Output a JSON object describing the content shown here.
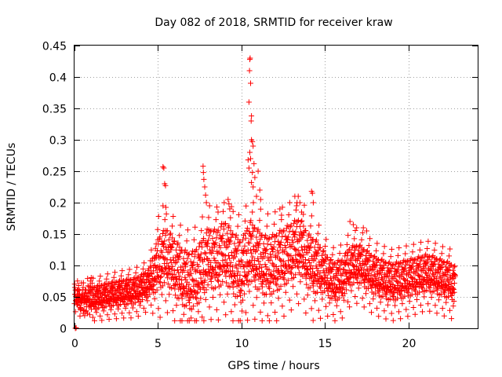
{
  "chart_data": {
    "type": "scatter",
    "title": "Day 082 of 2018, SRMTID for receiver kraw",
    "xlabel": "GPS time / hours",
    "ylabel": "SRMTID / TECUs",
    "xlim": [
      0,
      24.15
    ],
    "ylim": [
      0,
      0.45
    ],
    "grid": true,
    "marker": "+",
    "color": "#ff0000",
    "x_ticks": [
      0,
      5,
      10,
      15,
      20
    ],
    "x_tick_labels": [
      "0",
      "5",
      "10",
      "15",
      "20"
    ],
    "y_ticks": [
      0,
      0.05,
      0.1,
      0.15,
      0.2,
      0.25,
      0.3,
      0.35,
      0.4,
      0.45
    ],
    "y_tick_labels": [
      "0",
      "0.05",
      "0.1",
      "0.15",
      "0.2",
      "0.25",
      "0.3",
      "0.35",
      "0.4",
      "0.45"
    ],
    "profile": [
      [
        0.0,
        0.048
      ],
      [
        0.5,
        0.045
      ],
      [
        1.0,
        0.042
      ],
      [
        1.5,
        0.045
      ],
      [
        2.0,
        0.048
      ],
      [
        2.5,
        0.05
      ],
      [
        3.0,
        0.052
      ],
      [
        3.5,
        0.053
      ],
      [
        4.0,
        0.058
      ],
      [
        4.5,
        0.068
      ],
      [
        5.0,
        0.09
      ],
      [
        5.5,
        0.105
      ],
      [
        6.0,
        0.085
      ],
      [
        6.5,
        0.068
      ],
      [
        7.0,
        0.062
      ],
      [
        7.5,
        0.075
      ],
      [
        8.0,
        0.1
      ],
      [
        8.5,
        0.095
      ],
      [
        9.0,
        0.11
      ],
      [
        9.5,
        0.09
      ],
      [
        10.0,
        0.075
      ],
      [
        10.5,
        0.11
      ],
      [
        11.0,
        0.095
      ],
      [
        11.5,
        0.085
      ],
      [
        12.0,
        0.09
      ],
      [
        12.5,
        0.1
      ],
      [
        13.0,
        0.11
      ],
      [
        13.5,
        0.12
      ],
      [
        14.0,
        0.095
      ],
      [
        14.5,
        0.085
      ],
      [
        15.0,
        0.08
      ],
      [
        15.5,
        0.065
      ],
      [
        16.0,
        0.07
      ],
      [
        16.5,
        0.09
      ],
      [
        17.0,
        0.095
      ],
      [
        17.5,
        0.085
      ],
      [
        18.0,
        0.075
      ],
      [
        18.5,
        0.07
      ],
      [
        19.0,
        0.065
      ],
      [
        19.5,
        0.068
      ],
      [
        20.0,
        0.072
      ],
      [
        20.5,
        0.075
      ],
      [
        21.0,
        0.08
      ],
      [
        21.5,
        0.078
      ],
      [
        22.0,
        0.072
      ],
      [
        22.5,
        0.068
      ],
      [
        22.8,
        0.062
      ]
    ],
    "spread": [
      [
        0.0,
        0.012
      ],
      [
        4.5,
        0.015
      ],
      [
        5.0,
        0.03
      ],
      [
        10.0,
        0.035
      ],
      [
        14.5,
        0.03
      ],
      [
        15.0,
        0.022
      ],
      [
        22.8,
        0.02
      ]
    ],
    "x_end": 22.8,
    "point_count": 2300,
    "peaks": [
      {
        "x": 5.3,
        "y": 0.257
      },
      {
        "x": 5.35,
        "y": 0.255
      },
      {
        "x": 5.4,
        "y": 0.23
      },
      {
        "x": 5.45,
        "y": 0.227
      },
      {
        "x": 5.3,
        "y": 0.195
      },
      {
        "x": 5.5,
        "y": 0.182
      },
      {
        "x": 7.7,
        "y": 0.258
      },
      {
        "x": 7.72,
        "y": 0.248
      },
      {
        "x": 7.75,
        "y": 0.237
      },
      {
        "x": 7.8,
        "y": 0.225
      },
      {
        "x": 7.85,
        "y": 0.212
      },
      {
        "x": 7.9,
        "y": 0.2
      },
      {
        "x": 8.6,
        "y": 0.185
      },
      {
        "x": 9.2,
        "y": 0.205
      },
      {
        "x": 9.25,
        "y": 0.198
      },
      {
        "x": 9.3,
        "y": 0.19
      },
      {
        "x": 9.5,
        "y": 0.186
      },
      {
        "x": 10.5,
        "y": 0.428
      },
      {
        "x": 10.52,
        "y": 0.43
      },
      {
        "x": 10.48,
        "y": 0.41
      },
      {
        "x": 10.55,
        "y": 0.39
      },
      {
        "x": 10.45,
        "y": 0.36
      },
      {
        "x": 10.6,
        "y": 0.338
      },
      {
        "x": 10.58,
        "y": 0.33
      },
      {
        "x": 10.6,
        "y": 0.3
      },
      {
        "x": 10.65,
        "y": 0.297
      },
      {
        "x": 10.7,
        "y": 0.29
      },
      {
        "x": 10.5,
        "y": 0.28
      },
      {
        "x": 10.55,
        "y": 0.27
      },
      {
        "x": 10.75,
        "y": 0.262
      },
      {
        "x": 10.4,
        "y": 0.268
      },
      {
        "x": 10.45,
        "y": 0.255
      },
      {
        "x": 10.65,
        "y": 0.248
      },
      {
        "x": 11.0,
        "y": 0.25
      },
      {
        "x": 10.8,
        "y": 0.24
      },
      {
        "x": 10.6,
        "y": 0.232
      },
      {
        "x": 10.7,
        "y": 0.225
      },
      {
        "x": 11.1,
        "y": 0.22
      },
      {
        "x": 10.9,
        "y": 0.21
      },
      {
        "x": 11.15,
        "y": 0.205
      },
      {
        "x": 13.2,
        "y": 0.21
      },
      {
        "x": 13.4,
        "y": 0.21
      },
      {
        "x": 13.5,
        "y": 0.2
      },
      {
        "x": 13.3,
        "y": 0.195
      },
      {
        "x": 13.6,
        "y": 0.185
      },
      {
        "x": 14.2,
        "y": 0.218
      },
      {
        "x": 14.25,
        "y": 0.215
      },
      {
        "x": 14.3,
        "y": 0.2
      },
      {
        "x": 12.3,
        "y": 0.19
      },
      {
        "x": 12.4,
        "y": 0.18
      },
      {
        "x": 16.5,
        "y": 0.17
      },
      {
        "x": 16.7,
        "y": 0.165
      },
      {
        "x": 16.9,
        "y": 0.16
      },
      {
        "x": 17.3,
        "y": 0.16
      },
      {
        "x": 17.5,
        "y": 0.155
      },
      {
        "x": 0.05,
        "y": 0.0
      },
      {
        "x": 0.1,
        "y": 0.001
      }
    ]
  }
}
